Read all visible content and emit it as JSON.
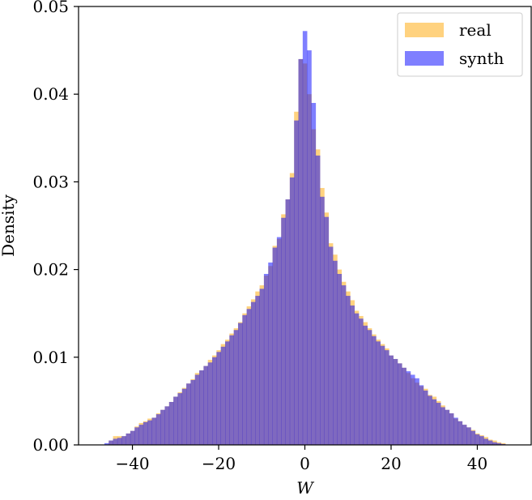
{
  "chart_data": {
    "type": "histogram",
    "xlabel": "W",
    "ylabel": "Density",
    "xlim": [
      -52.5,
      52.5
    ],
    "ylim": [
      0,
      0.05
    ],
    "xticks": [
      -40,
      -20,
      0,
      20,
      40
    ],
    "xtick_labels": [
      "−40",
      "−20",
      "0",
      "20",
      "40"
    ],
    "yticks": [
      0,
      0.01,
      0.02,
      0.03,
      0.04,
      0.05
    ],
    "ytick_labels": [
      "0.00",
      "0.01",
      "0.02",
      "0.03",
      "0.04",
      "0.05"
    ],
    "grid": false,
    "legend_position": "top-right",
    "bin_range": [
      -46.5,
      46.5
    ],
    "bin_count": 93,
    "series": [
      {
        "name": "real",
        "color": "#ffa500",
        "alpha": 0.5,
        "values": [
          0.0,
          0.0005,
          0.001,
          0.001,
          0.001,
          0.0013,
          0.0016,
          0.0021,
          0.0025,
          0.0027,
          0.003,
          0.0031,
          0.0036,
          0.004,
          0.0044,
          0.0049,
          0.0055,
          0.006,
          0.0065,
          0.007,
          0.0075,
          0.0082,
          0.0085,
          0.009,
          0.0097,
          0.0102,
          0.0108,
          0.0115,
          0.012,
          0.0127,
          0.0133,
          0.014,
          0.015,
          0.0158,
          0.0166,
          0.0175,
          0.0182,
          0.0193,
          0.0204,
          0.0227,
          0.0235,
          0.0263,
          0.028,
          0.031,
          0.038,
          0.044,
          0.0435,
          0.04,
          0.036,
          0.0337,
          0.0293,
          0.0265,
          0.023,
          0.0217,
          0.02,
          0.0186,
          0.0175,
          0.0165,
          0.0153,
          0.0147,
          0.014,
          0.0133,
          0.0126,
          0.012,
          0.0115,
          0.011,
          0.0102,
          0.0098,
          0.0093,
          0.0088,
          0.0082,
          0.0076,
          0.0071,
          0.0067,
          0.0064,
          0.0057,
          0.0055,
          0.005,
          0.0045,
          0.004,
          0.0036,
          0.003,
          0.0027,
          0.0023,
          0.002,
          0.0017,
          0.0013,
          0.0011,
          0.0009,
          0.0006,
          0.0005,
          0.0003,
          0.0002
        ]
      },
      {
        "name": "synth",
        "color": "#0000ff",
        "alpha": 0.5,
        "values": [
          0.0002,
          0.0005,
          0.0007,
          0.0008,
          0.001,
          0.0013,
          0.0016,
          0.002,
          0.0023,
          0.0026,
          0.0028,
          0.0031,
          0.0035,
          0.004,
          0.0044,
          0.0049,
          0.0055,
          0.0059,
          0.0064,
          0.007,
          0.0074,
          0.008,
          0.0085,
          0.009,
          0.0094,
          0.01,
          0.0106,
          0.0112,
          0.0118,
          0.0125,
          0.0131,
          0.0139,
          0.0148,
          0.0155,
          0.0163,
          0.017,
          0.0178,
          0.0195,
          0.0208,
          0.0225,
          0.0237,
          0.0259,
          0.028,
          0.0305,
          0.037,
          0.044,
          0.0472,
          0.045,
          0.039,
          0.033,
          0.0283,
          0.026,
          0.0226,
          0.021,
          0.0195,
          0.0182,
          0.017,
          0.0159,
          0.015,
          0.0144,
          0.0136,
          0.0131,
          0.0124,
          0.0118,
          0.0113,
          0.0108,
          0.0102,
          0.0098,
          0.0093,
          0.0088,
          0.0084,
          0.008,
          0.0076,
          0.0068,
          0.0062,
          0.0056,
          0.0052,
          0.0048,
          0.0043,
          0.004,
          0.0036,
          0.0031,
          0.0027,
          0.0023,
          0.002,
          0.0016,
          0.0012,
          0.001,
          0.0007,
          0.0005,
          0.0003,
          0.0002,
          0.0001
        ]
      }
    ]
  }
}
